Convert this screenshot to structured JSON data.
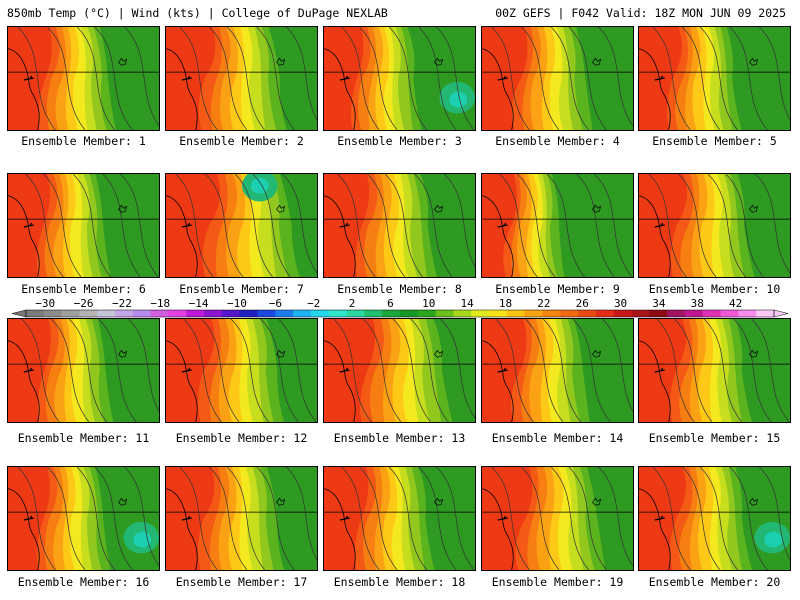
{
  "header": {
    "left": "850mb Temp (°C) | Wind (kts) | College of DuPage NEXLAB",
    "right": "00Z GEFS | F042 Valid: 18Z MON JUN 09 2025"
  },
  "member_prefix": "Ensemble Member: ",
  "members": [
    {
      "id": "1",
      "warm_extent": 0.42,
      "cool_spot": false
    },
    {
      "id": "2",
      "warm_extent": 0.47,
      "cool_spot": false
    },
    {
      "id": "3",
      "warm_extent": 0.38,
      "cool_spot": true
    },
    {
      "id": "4",
      "warm_extent": 0.43,
      "cool_spot": false
    },
    {
      "id": "5",
      "warm_extent": 0.4,
      "cool_spot": false
    },
    {
      "id": "6",
      "warm_extent": 0.4,
      "cool_spot": false
    },
    {
      "id": "7",
      "warm_extent": 0.52,
      "cool_spot": true
    },
    {
      "id": "8",
      "warm_extent": 0.44,
      "cool_spot": false
    },
    {
      "id": "9",
      "warm_extent": 0.32,
      "cool_spot": false
    },
    {
      "id": "10",
      "warm_extent": 0.45,
      "cool_spot": false
    },
    {
      "id": "11",
      "warm_extent": 0.41,
      "cool_spot": false
    },
    {
      "id": "12",
      "warm_extent": 0.46,
      "cool_spot": false
    },
    {
      "id": "13",
      "warm_extent": 0.5,
      "cool_spot": false
    },
    {
      "id": "14",
      "warm_extent": 0.42,
      "cool_spot": false
    },
    {
      "id": "15",
      "warm_extent": 0.44,
      "cool_spot": false
    },
    {
      "id": "16",
      "warm_extent": 0.4,
      "cool_spot": true
    },
    {
      "id": "17",
      "warm_extent": 0.46,
      "cool_spot": false
    },
    {
      "id": "18",
      "warm_extent": 0.43,
      "cool_spot": false
    },
    {
      "id": "19",
      "warm_extent": 0.48,
      "cool_spot": false
    },
    {
      "id": "20",
      "warm_extent": 0.44,
      "cool_spot": true
    }
  ],
  "colorbar": {
    "tick_labels": [
      "-30",
      "-26",
      "-22",
      "-18",
      "-14",
      "-10",
      "-6",
      "-2",
      "2",
      "6",
      "10",
      "14",
      "18",
      "22",
      "26",
      "30",
      "34",
      "38",
      "42"
    ],
    "colors": [
      "#7a7a7a",
      "#8c8c8c",
      "#9f9f9f",
      "#b4b4b4",
      "#c4c4d8",
      "#c6a6e8",
      "#b68cf0",
      "#d25fe0",
      "#e33fe2",
      "#c018d8",
      "#8a14d0",
      "#5416c8",
      "#2020c0",
      "#1c48e0",
      "#1e7cf2",
      "#1eb2f6",
      "#22d6ee",
      "#2ee6cc",
      "#2cd6a0",
      "#20c070",
      "#1aa83c",
      "#169a26",
      "#2aa81c",
      "#6cc01a",
      "#a8d81c",
      "#e0ea1c",
      "#f8e218",
      "#fcc412",
      "#f8a410",
      "#f48610",
      "#f06a12",
      "#ec4a14",
      "#e42c18",
      "#c81818",
      "#a81418",
      "#8c0c14",
      "#a01464",
      "#c01890",
      "#e030b4",
      "#f058d8",
      "#f88cec",
      "#fcc8f6"
    ],
    "range": [
      -32,
      46
    ]
  },
  "map_palette": {
    "warmest": "#ee3a14",
    "red": "#f45a16",
    "orange_red": "#f77f12",
    "orange": "#fba214",
    "gold": "#fdc816",
    "yellow": "#f4e81e",
    "lime": "#c6de1e",
    "yellow_green": "#92c81e",
    "green": "#5bb41e",
    "dark_green": "#2e9a22",
    "teal": "#22b874",
    "aqua": "#1ccfb0"
  }
}
